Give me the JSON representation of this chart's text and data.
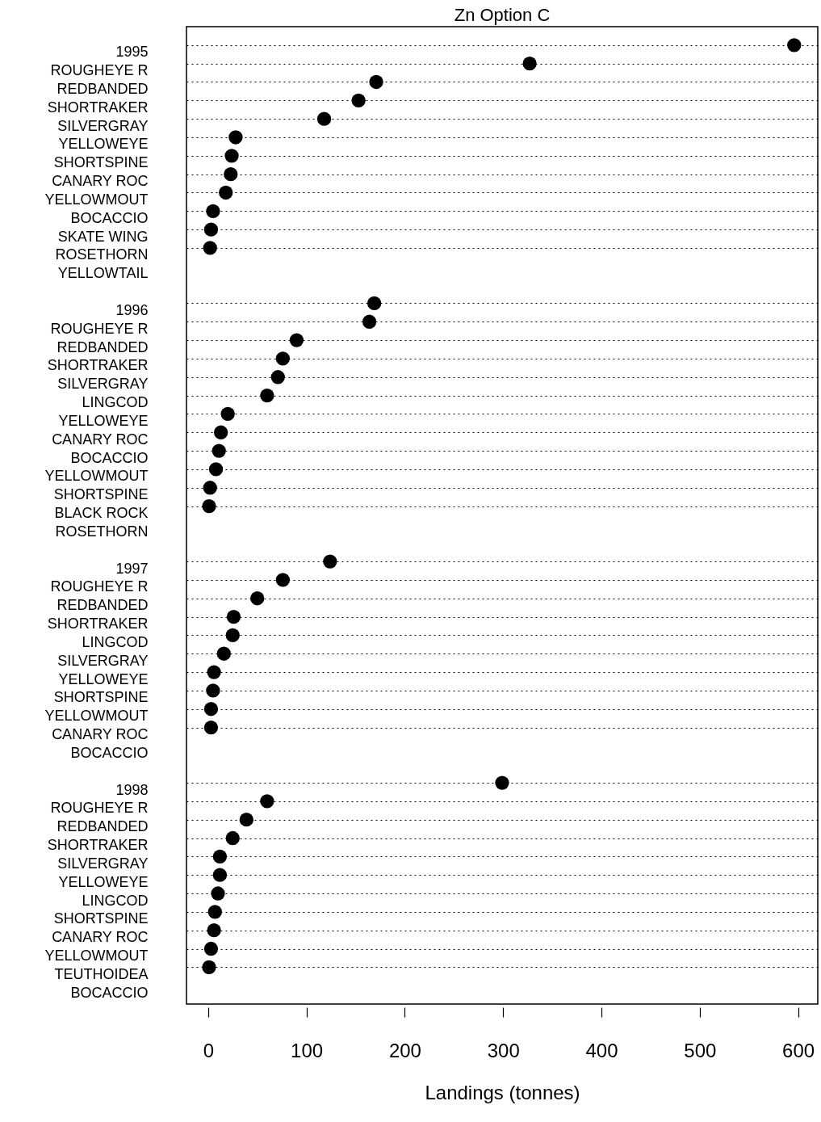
{
  "chart_data": {
    "type": "scatter",
    "title": "Zn Option C",
    "xlabel": "Landings (tonnes)",
    "categories": [
      "1995",
      "ROUGHEYE R",
      "REDBANDED",
      "SHORTRAKER",
      "SILVERGRAY",
      "YELLOWEYE",
      "SHORTSPINE",
      "CANARY ROC",
      "YELLOWMOUT",
      "BOCACCIO",
      "SKATE WING",
      "ROSETHORN",
      "YELLOWTAIL",
      null,
      "1996",
      "ROUGHEYE R",
      "REDBANDED",
      "SHORTRAKER",
      "SILVERGRAY",
      "LINGCOD",
      "YELLOWEYE",
      "CANARY ROC",
      "BOCACCIO",
      "YELLOWMOUT",
      "SHORTSPINE",
      "BLACK ROCK",
      "ROSETHORN",
      null,
      "1997",
      "ROUGHEYE R",
      "REDBANDED",
      "SHORTRAKER",
      "LINGCOD",
      "SILVERGRAY",
      "YELLOWEYE",
      "SHORTSPINE",
      "YELLOWMOUT",
      "CANARY ROC",
      "BOCACCIO",
      null,
      "1998",
      "ROUGHEYE R",
      "REDBANDED",
      "SHORTRAKER",
      "SILVERGRAY",
      "YELLOWEYE",
      "LINGCOD",
      "SHORTSPINE",
      "CANARY ROC",
      "YELLOWMOUT",
      "TEUTHOIDEA",
      "BOCACCIO"
    ],
    "values": [
      596,
      327,
      171,
      153,
      118,
      28,
      24,
      23,
      18,
      5,
      3,
      2,
      null,
      null,
      169,
      164,
      90,
      76,
      71,
      60,
      20,
      13,
      11,
      8,
      2,
      1,
      null,
      null,
      124,
      76,
      50,
      26,
      25,
      16,
      6,
      5,
      3,
      3,
      null,
      null,
      299,
      60,
      39,
      25,
      12,
      12,
      10,
      7,
      6,
      3,
      1,
      null
    ],
    "orientation": "horizontal",
    "color": "#000000",
    "marker": "circle",
    "xlim": [
      -22,
      620
    ],
    "xticks": [
      0,
      100,
      200,
      300,
      400,
      500,
      600
    ],
    "grid": "y",
    "line_style": "dotted"
  }
}
